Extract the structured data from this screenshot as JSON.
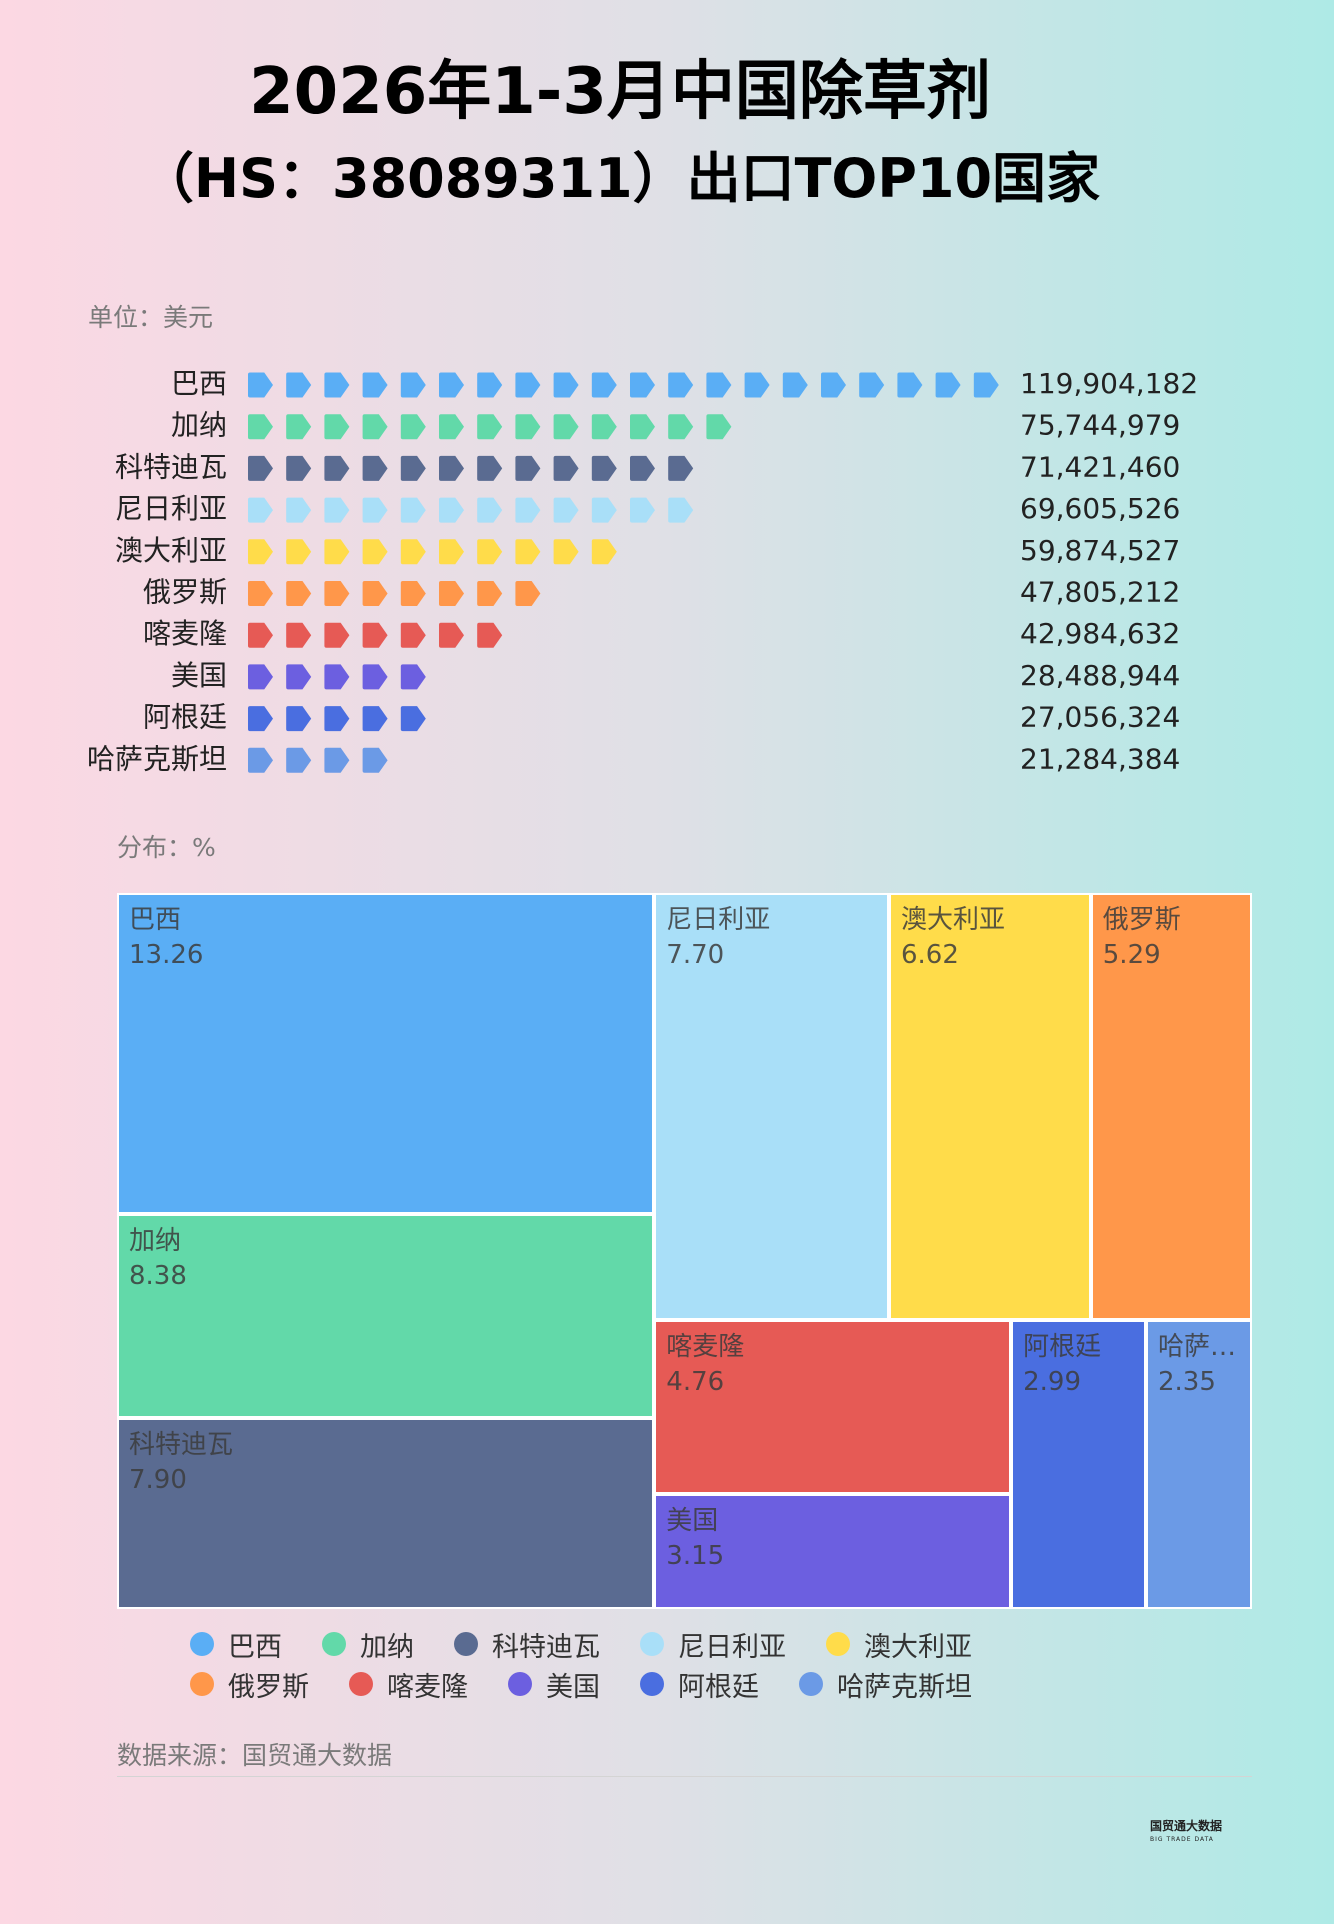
{
  "chart_data": [
    {
      "type": "pictorial_bar",
      "title": "2026年1-3月中国除草剂",
      "subtitle": "（HS：38089311）出口TOP10国家",
      "unit_label": "单位：美元",
      "categories": [
        "巴西",
        "加纳",
        "科特迪瓦",
        "尼日利亚",
        "澳大利亚",
        "俄罗斯",
        "喀麦隆",
        "美国",
        "阿根廷",
        "哈萨克斯坦"
      ],
      "values": [
        119904182,
        75744979,
        71421460,
        69605526,
        59874527,
        47805212,
        42984632,
        28488944,
        27056324,
        21284384
      ],
      "value_labels": [
        "119,904,182",
        "75,744,979",
        "71,421,460",
        "69,605,526",
        "59,874,527",
        "47,805,212",
        "42,984,632",
        "28,488,944",
        "27,056,324",
        "21,284,384"
      ],
      "colors": [
        "#5aaef5",
        "#62d9a9",
        "#5a6b91",
        "#a9dff8",
        "#ffdc4a",
        "#ff974a",
        "#e65a55",
        "#6c5fe0",
        "#4a6ee0",
        "#6b9ae6"
      ]
    },
    {
      "type": "treemap",
      "title": "分布：%",
      "categories": [
        "巴西",
        "加纳",
        "科特迪瓦",
        "尼日利亚",
        "澳大利亚",
        "俄罗斯",
        "喀麦隆",
        "美国",
        "阿根廷",
        "哈萨克斯坦"
      ],
      "values": [
        13.26,
        8.38,
        7.9,
        7.7,
        6.62,
        5.29,
        4.76,
        3.15,
        2.99,
        2.35
      ],
      "value_labels": [
        "13.26",
        "8.38",
        "7.90",
        "7.70",
        "6.62",
        "5.29",
        "4.76",
        "3.15",
        "2.99",
        "2.35"
      ],
      "colors": [
        "#5aaef5",
        "#62d9a9",
        "#5a6b91",
        "#a9dff8",
        "#ffdc4a",
        "#ff974a",
        "#e65a55",
        "#6c5fe0",
        "#4a6ee0",
        "#6b9ae6"
      ],
      "legend": true
    }
  ],
  "source": "数据来源：国贸通大数据",
  "logo": {
    "name": "国贸通大数据",
    "tagline": "BIG TRADE DATA"
  }
}
